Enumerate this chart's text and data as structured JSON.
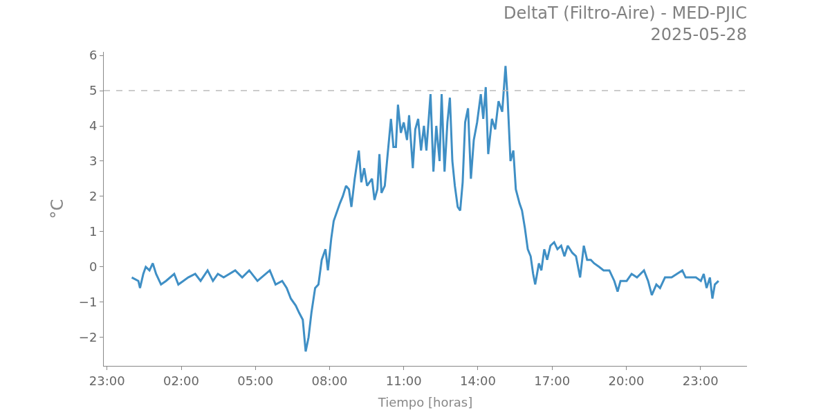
{
  "chart_data": {
    "type": "line",
    "title": "DeltaT (Filtro-Aire) - MED-PJIC",
    "subtitle": "2025-05-28",
    "xlabel": "Tiempo [horas]",
    "ylabel": "°C",
    "x": [
      "2025-05-28T00:00",
      "2025-05-28T00:16",
      "2025-05-28T00:20",
      "2025-05-28T00:28",
      "2025-05-28T00:34",
      "2025-05-28T00:43",
      "2025-05-28T00:51",
      "2025-05-28T00:59",
      "2025-05-28T01:11",
      "2025-05-28T01:23",
      "2025-05-28T01:43",
      "2025-05-28T01:53",
      "2025-05-28T02:05",
      "2025-05-28T02:17",
      "2025-05-28T02:34",
      "2025-05-28T02:47",
      "2025-05-28T03:04",
      "2025-05-28T03:17",
      "2025-05-28T03:29",
      "2025-05-28T03:43",
      "2025-05-28T04:11",
      "2025-05-28T04:28",
      "2025-05-28T04:45",
      "2025-05-28T05:05",
      "2025-05-28T05:35",
      "2025-05-28T05:49",
      "2025-05-28T06:05",
      "2025-05-28T06:16",
      "2025-05-28T06:26",
      "2025-05-28T06:38",
      "2025-05-28T06:46",
      "2025-05-28T06:55",
      "2025-05-28T07:02",
      "2025-05-28T07:09",
      "2025-05-28T07:16",
      "2025-05-28T07:25",
      "2025-05-28T07:33",
      "2025-05-28T07:41",
      "2025-05-28T07:50",
      "2025-05-28T07:56",
      "2025-05-28T08:04",
      "2025-05-28T08:10",
      "2025-05-28T08:19",
      "2025-05-28T08:25",
      "2025-05-28T08:32",
      "2025-05-28T08:40",
      "2025-05-28T08:47",
      "2025-05-28T08:53",
      "2025-05-28T09:01",
      "2025-05-28T09:11",
      "2025-05-28T09:17",
      "2025-05-28T09:24",
      "2025-05-28T09:31",
      "2025-05-28T09:43",
      "2025-05-28T09:49",
      "2025-05-28T09:56",
      "2025-05-28T10:01",
      "2025-05-28T10:06",
      "2025-05-28T10:14",
      "2025-05-28T10:21",
      "2025-05-28T10:29",
      "2025-05-28T10:35",
      "2025-05-28T10:41",
      "2025-05-28T10:46",
      "2025-05-28T10:53",
      "2025-05-28T11:00",
      "2025-05-28T11:08",
      "2025-05-28T11:13",
      "2025-05-28T11:22",
      "2025-05-28T11:28",
      "2025-05-28T11:35",
      "2025-05-28T11:42",
      "2025-05-28T11:49",
      "2025-05-28T11:55",
      "2025-05-28T12:05",
      "2025-05-28T12:12",
      "2025-05-28T12:19",
      "2025-05-28T12:27",
      "2025-05-28T12:32",
      "2025-05-28T12:39",
      "2025-05-28T12:46",
      "2025-05-28T12:52",
      "2025-05-28T12:58",
      "2025-05-28T13:04",
      "2025-05-28T13:11",
      "2025-05-28T13:17",
      "2025-05-28T13:23",
      "2025-05-28T13:29",
      "2025-05-28T13:36",
      "2025-05-28T13:43",
      "2025-05-28T13:50",
      "2025-05-28T13:58",
      "2025-05-28T14:07",
      "2025-05-28T14:13",
      "2025-05-28T14:19",
      "2025-05-28T14:25",
      "2025-05-28T14:34",
      "2025-05-28T14:42",
      "2025-05-28T14:50",
      "2025-05-28T14:59",
      "2025-05-28T15:07",
      "2025-05-28T15:12",
      "2025-05-28T15:19",
      "2025-05-28T15:26",
      "2025-05-28T15:32",
      "2025-05-28T15:41",
      "2025-05-28T15:47",
      "2025-05-28T15:54",
      "2025-05-28T16:01",
      "2025-05-28T16:08",
      "2025-05-28T16:14",
      "2025-05-28T16:19",
      "2025-05-28T16:28",
      "2025-05-28T16:34",
      "2025-05-28T16:41",
      "2025-05-28T16:48",
      "2025-05-28T16:56",
      "2025-05-28T17:05",
      "2025-05-28T17:13",
      "2025-05-28T17:22",
      "2025-05-28T17:30",
      "2025-05-28T17:38",
      "2025-05-28T17:49",
      "2025-05-28T17:58",
      "2025-05-28T18:08",
      "2025-05-28T18:17",
      "2025-05-28T18:25",
      "2025-05-28T18:34",
      "2025-05-28T18:42",
      "2025-05-28T18:54",
      "2025-05-28T19:05",
      "2025-05-28T19:19",
      "2025-05-28T19:31",
      "2025-05-28T19:39",
      "2025-05-28T19:46",
      "2025-05-28T20:01",
      "2025-05-28T20:13",
      "2025-05-28T20:26",
      "2025-05-28T20:43",
      "2025-05-28T20:53",
      "2025-05-28T21:02",
      "2025-05-28T21:13",
      "2025-05-28T21:22",
      "2025-05-28T21:34",
      "2025-05-28T21:50",
      "2025-05-28T22:16",
      "2025-05-28T22:24",
      "2025-05-28T22:49",
      "2025-05-28T23:01",
      "2025-05-28T23:08",
      "2025-05-28T23:15",
      "2025-05-28T23:23",
      "2025-05-28T23:29",
      "2025-05-28T23:35",
      "2025-05-28T23:44"
    ],
    "series": [
      {
        "color": "#3f8fc5",
        "values": [
          -0.3,
          -0.4,
          -0.6,
          -0.2,
          0.0,
          -0.1,
          0.1,
          -0.2,
          -0.5,
          -0.4,
          -0.2,
          -0.5,
          -0.4,
          -0.3,
          -0.2,
          -0.4,
          -0.1,
          -0.4,
          -0.2,
          -0.3,
          -0.1,
          -0.3,
          -0.1,
          -0.4,
          -0.1,
          -0.5,
          -0.4,
          -0.6,
          -0.9,
          -1.1,
          -1.3,
          -1.5,
          -2.4,
          -2.0,
          -1.3,
          -0.6,
          -0.5,
          0.2,
          0.5,
          -0.1,
          0.8,
          1.3,
          1.6,
          1.8,
          2.0,
          2.3,
          2.2,
          1.7,
          2.5,
          3.3,
          2.4,
          2.8,
          2.3,
          2.5,
          1.9,
          2.2,
          3.2,
          2.1,
          2.3,
          3.2,
          4.2,
          3.4,
          3.4,
          4.6,
          3.8,
          4.1,
          3.6,
          4.3,
          2.8,
          3.9,
          4.2,
          3.3,
          4.0,
          3.3,
          4.9,
          2.7,
          4.0,
          3.0,
          4.9,
          2.7,
          4.1,
          4.8,
          3.0,
          2.3,
          1.7,
          1.6,
          2.4,
          4.1,
          4.5,
          2.5,
          3.6,
          4.1,
          4.9,
          4.2,
          5.1,
          3.2,
          4.2,
          3.9,
          4.7,
          4.4,
          5.7,
          4.8,
          3.0,
          3.3,
          2.2,
          1.8,
          1.6,
          1.1,
          0.5,
          0.3,
          -0.2,
          -0.5,
          0.1,
          -0.1,
          0.5,
          0.2,
          0.6,
          0.7,
          0.5,
          0.6,
          0.3,
          0.6,
          0.4,
          0.3,
          -0.3,
          0.6,
          0.2,
          0.2,
          0.1,
          0.0,
          -0.1,
          -0.1,
          -0.4,
          -0.7,
          -0.4,
          -0.4,
          -0.2,
          -0.3,
          -0.1,
          -0.4,
          -0.8,
          -0.5,
          -0.6,
          -0.3,
          -0.3,
          -0.1,
          -0.3,
          -0.3,
          -0.4,
          -0.2,
          -0.6,
          -0.3,
          -0.9,
          -0.5,
          -0.4
        ]
      }
    ],
    "xlim": [
      "2025-05-27T22:52",
      "2025-05-29T00:53"
    ],
    "xticks": [
      {
        "value": "2025-05-27T23:00",
        "label": "23:00"
      },
      {
        "value": "2025-05-28T02:00",
        "label": "02:00"
      },
      {
        "value": "2025-05-28T05:00",
        "label": "05:00"
      },
      {
        "value": "2025-05-28T08:00",
        "label": "08:00"
      },
      {
        "value": "2025-05-28T11:00",
        "label": "11:00"
      },
      {
        "value": "2025-05-28T14:00",
        "label": "14:00"
      },
      {
        "value": "2025-05-28T17:00",
        "label": "17:00"
      },
      {
        "value": "2025-05-28T20:00",
        "label": "20:00"
      },
      {
        "value": "2025-05-28T23:00",
        "label": "23:00"
      }
    ],
    "ylim": [
      -2.81,
      6.1
    ],
    "yticks": [
      {
        "value": -2,
        "label": "−2"
      },
      {
        "value": -1,
        "label": "−1"
      },
      0,
      1,
      2,
      3,
      4,
      5,
      6
    ],
    "ref_lines": [
      {
        "axis": "y",
        "value": 5,
        "color": "#bbbbbb",
        "line_style": "dashed"
      }
    ],
    "marker": "none",
    "line_style": "solid"
  }
}
